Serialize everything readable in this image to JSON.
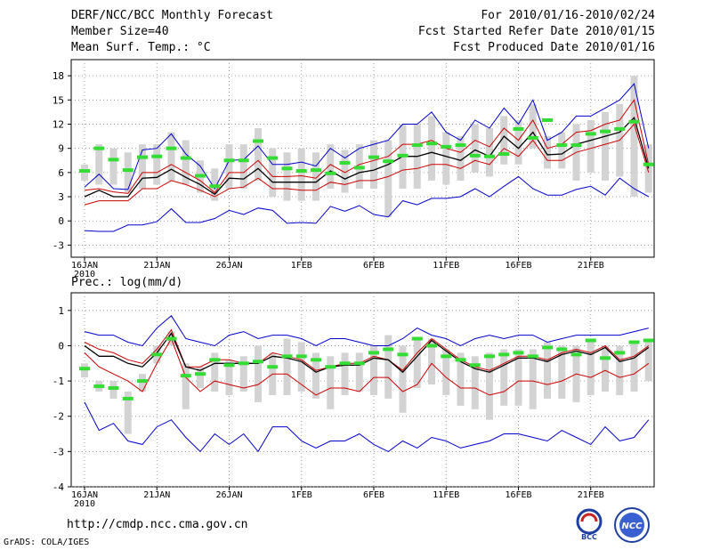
{
  "header": {
    "title": "DERF/NCC/BCC Monthly Forecast",
    "member": "Member Size=40",
    "variable": "Mean Surf. Temp.: °C",
    "period": "For 2010/01/16-2010/02/24",
    "refer": "Fcst Started Refer Date 2010/01/15",
    "produced": "Fcst Produced Date 2010/01/16"
  },
  "footer": {
    "url": "http://cmdp.ncc.cma.gov.cn",
    "grads": "GrADS: COLA/IGES",
    "logo_bcc": "BCC",
    "logo_ncc": "NCC"
  },
  "colors": {
    "max_min": "#0000cc",
    "spread": "#cc0000",
    "mean": "#000000",
    "obs": "#33dd33",
    "box": "#d3d3d3",
    "grid": "#888888"
  },
  "chart_data": [
    {
      "type": "line",
      "title": "Mean Surf. Temp.: °C",
      "ylim": [
        -4.5,
        20
      ],
      "yticks": [
        -3,
        0,
        3,
        6,
        9,
        12,
        15,
        18
      ],
      "xticks": [
        "16JAN",
        "21JAN",
        "26JAN",
        "1FEB",
        "6FEB",
        "11FEB",
        "16FEB",
        "21FEB"
      ],
      "xtick_sub": "2010",
      "x_days": 40,
      "series": [
        {
          "name": "max",
          "values": [
            4.2,
            5.8,
            4.0,
            3.9,
            8.8,
            9.0,
            10.8,
            8.3,
            6.8,
            4.0,
            7.5,
            7.6,
            9.3,
            7.0,
            7.0,
            7.3,
            6.8,
            9.0,
            7.8,
            9.0,
            9.5,
            10.0,
            12.0,
            12.0,
            13.5,
            11.0,
            10.0,
            12.5,
            11.5,
            14.0,
            12.0,
            15.0,
            10.0,
            11.0,
            13.0,
            13.0,
            14.0,
            15.0,
            17.0,
            9.0
          ]
        },
        {
          "name": "upper",
          "values": [
            3.8,
            4.0,
            3.6,
            3.4,
            6.0,
            6.0,
            7.0,
            6.0,
            5.0,
            3.5,
            6.0,
            6.0,
            7.5,
            5.5,
            5.5,
            5.6,
            5.3,
            7.0,
            6.0,
            7.0,
            7.5,
            8.0,
            9.5,
            9.5,
            10.0,
            9.0,
            8.5,
            10.0,
            9.2,
            11.5,
            10.0,
            12.5,
            9.0,
            9.5,
            11.0,
            11.2,
            12.0,
            12.5,
            15.0,
            7.0
          ]
        },
        {
          "name": "mean",
          "values": [
            3.0,
            3.8,
            3.0,
            3.0,
            5.3,
            5.4,
            6.4,
            5.4,
            4.5,
            3.3,
            5.3,
            5.2,
            6.5,
            4.8,
            4.8,
            4.8,
            4.8,
            6.2,
            5.2,
            6.0,
            6.3,
            7.0,
            8.0,
            8.0,
            8.5,
            8.0,
            7.5,
            8.8,
            8.0,
            10.5,
            9.0,
            11.0,
            8.2,
            8.3,
            9.5,
            10.0,
            10.5,
            11.0,
            12.8,
            6.5
          ]
        },
        {
          "name": "lower",
          "values": [
            2.0,
            2.5,
            2.5,
            2.5,
            4.0,
            4.0,
            5.0,
            4.5,
            3.8,
            3.0,
            4.0,
            4.2,
            5.3,
            4.0,
            4.0,
            3.8,
            3.8,
            4.8,
            4.5,
            5.0,
            5.0,
            5.5,
            6.3,
            6.5,
            7.0,
            7.0,
            6.5,
            7.5,
            7.0,
            9.0,
            8.0,
            10.0,
            7.5,
            7.5,
            8.5,
            9.0,
            9.5,
            10.0,
            12.0,
            6.0
          ]
        },
        {
          "name": "min",
          "values": [
            -1.2,
            -1.3,
            -1.3,
            -0.5,
            -0.5,
            -0.1,
            1.5,
            -0.2,
            -0.2,
            0.3,
            1.3,
            0.8,
            1.6,
            1.3,
            -0.3,
            -0.2,
            -0.3,
            1.8,
            1.2,
            1.9,
            0.8,
            0.5,
            2.5,
            2.0,
            2.8,
            2.8,
            3.0,
            4.0,
            3.0,
            4.3,
            5.5,
            4.0,
            3.2,
            3.2,
            3.9,
            4.3,
            3.2,
            5.3,
            4.0,
            3.0
          ]
        },
        {
          "name": "observed",
          "values": [
            6.2,
            9.0,
            7.6,
            6.3,
            7.9,
            8.0,
            9.0,
            7.8,
            5.6,
            4.3,
            7.5,
            7.5,
            9.9,
            7.8,
            6.5,
            6.2,
            6.3,
            5.9,
            7.2,
            6.6,
            7.9,
            7.4,
            8.1,
            9.4,
            9.6,
            9.2,
            9.4,
            8.1,
            8.0,
            8.3,
            11.4,
            10.3,
            12.5,
            9.4,
            9.4,
            10.8,
            11.1,
            11.4,
            12.3,
            7.0
          ]
        }
      ],
      "boxes_high": [
        7.0,
        9.5,
        9.0,
        8.5,
        9.5,
        9.5,
        11.0,
        10.0,
        7.5,
        6.5,
        9.5,
        9.5,
        11.5,
        9.0,
        8.5,
        9.0,
        8.5,
        9.5,
        8.8,
        9.5,
        10.0,
        10.0,
        12.0,
        12.0,
        13.0,
        11.0,
        10.5,
        12.0,
        11.5,
        13.0,
        12.5,
        14.5,
        10.5,
        11.0,
        12.0,
        12.5,
        13.5,
        14.5,
        18.0,
        9.5
      ],
      "boxes_low": [
        5.0,
        4.5,
        4.5,
        3.5,
        4.0,
        4.5,
        5.0,
        4.5,
        3.5,
        2.5,
        4.0,
        4.0,
        5.0,
        3.0,
        2.5,
        2.5,
        2.5,
        4.0,
        3.5,
        4.0,
        4.0,
        0.5,
        4.0,
        4.0,
        5.0,
        4.5,
        5.0,
        6.0,
        5.5,
        7.0,
        7.0,
        9.0,
        6.5,
        6.5,
        5.0,
        6.0,
        5.0,
        5.5,
        3.0,
        3.5
      ]
    },
    {
      "type": "line",
      "title": "Prec.: log(mm/d)",
      "ylim": [
        -4,
        1.5
      ],
      "yticks": [
        -4,
        -3,
        -2,
        -1,
        0,
        1
      ],
      "xticks": [
        "16JAN",
        "21JAN",
        "26JAN",
        "1FEB",
        "6FEB",
        "11FEB",
        "16FEB",
        "21FEB"
      ],
      "xtick_sub": "2010",
      "x_days": 40,
      "series": [
        {
          "name": "max",
          "values": [
            0.4,
            0.3,
            0.3,
            0.1,
            0.0,
            0.5,
            0.85,
            0.2,
            0.1,
            0.0,
            0.3,
            0.4,
            0.2,
            0.3,
            0.3,
            0.2,
            0.0,
            0.2,
            0.2,
            0.1,
            0.0,
            0.0,
            0.2,
            0.5,
            0.3,
            0.2,
            0.0,
            0.2,
            0.3,
            0.2,
            0.3,
            0.3,
            0.1,
            0.2,
            0.3,
            0.3,
            0.3,
            0.3,
            0.4,
            0.5
          ]
        },
        {
          "name": "upper",
          "values": [
            0.1,
            -0.1,
            -0.2,
            -0.4,
            -0.5,
            -0.1,
            0.45,
            -0.6,
            -0.6,
            -0.4,
            -0.4,
            -0.5,
            -0.5,
            -0.2,
            -0.3,
            -0.4,
            -0.7,
            -0.6,
            -0.5,
            -0.5,
            -0.3,
            -0.4,
            -0.7,
            -0.2,
            0.2,
            -0.1,
            -0.4,
            -0.6,
            -0.7,
            -0.5,
            -0.3,
            -0.3,
            -0.4,
            -0.2,
            -0.1,
            -0.2,
            0.0,
            -0.4,
            -0.3,
            0.0
          ]
        },
        {
          "name": "mean",
          "values": [
            0.0,
            -0.3,
            -0.3,
            -0.5,
            -0.6,
            -0.2,
            0.35,
            -0.6,
            -0.7,
            -0.5,
            -0.5,
            -0.5,
            -0.5,
            -0.3,
            -0.35,
            -0.45,
            -0.75,
            -0.6,
            -0.55,
            -0.55,
            -0.35,
            -0.4,
            -0.75,
            -0.3,
            0.15,
            -0.15,
            -0.45,
            -0.65,
            -0.75,
            -0.55,
            -0.35,
            -0.35,
            -0.45,
            -0.25,
            -0.15,
            -0.25,
            -0.05,
            -0.45,
            -0.35,
            -0.05
          ]
        },
        {
          "name": "lower",
          "values": [
            -0.2,
            -0.6,
            -0.8,
            -1.0,
            -1.3,
            -0.5,
            0.2,
            -0.9,
            -1.3,
            -1.0,
            -1.1,
            -1.2,
            -1.1,
            -0.8,
            -0.8,
            -1.1,
            -1.4,
            -1.2,
            -1.2,
            -1.3,
            -0.9,
            -0.9,
            -1.3,
            -1.1,
            -0.5,
            -0.9,
            -1.2,
            -1.2,
            -1.4,
            -1.3,
            -1.0,
            -1.0,
            -1.1,
            -1.0,
            -0.8,
            -0.9,
            -0.7,
            -0.9,
            -0.8,
            -0.5
          ]
        },
        {
          "name": "min",
          "values": [
            -1.6,
            -2.4,
            -2.2,
            -2.7,
            -2.8,
            -2.3,
            -2.1,
            -2.6,
            -3.0,
            -2.5,
            -2.8,
            -2.5,
            -3.0,
            -2.3,
            -2.3,
            -2.7,
            -2.9,
            -2.7,
            -2.7,
            -2.5,
            -2.8,
            -3.0,
            -2.7,
            -2.9,
            -2.6,
            -2.7,
            -2.9,
            -2.8,
            -2.7,
            -2.5,
            -2.5,
            -2.6,
            -2.7,
            -2.4,
            -2.6,
            -2.8,
            -2.3,
            -2.7,
            -2.6,
            -2.1
          ]
        },
        {
          "name": "observed",
          "values": [
            -0.65,
            -1.15,
            -1.2,
            -1.5,
            -1.0,
            -0.25,
            0.2,
            -0.85,
            -0.8,
            -0.4,
            -0.55,
            -0.5,
            -0.45,
            -0.6,
            -0.3,
            -0.3,
            -0.4,
            -0.6,
            -0.5,
            -0.5,
            -0.2,
            -0.1,
            -0.25,
            0.2,
            0.0,
            -0.3,
            -0.4,
            -0.55,
            -0.3,
            -0.25,
            -0.2,
            -0.3,
            -0.05,
            -0.1,
            -0.25,
            0.15,
            -0.35,
            -0.2,
            0.1,
            0.15
          ]
        }
      ],
      "boxes_high": [
        -0.5,
        -1.0,
        -1.0,
        -1.3,
        -0.8,
        0.0,
        0.4,
        -0.5,
        -0.6,
        -0.2,
        -0.4,
        -0.3,
        0.0,
        -0.2,
        0.2,
        0.1,
        -0.2,
        -0.3,
        -0.2,
        -0.2,
        0.0,
        0.3,
        0.0,
        0.2,
        0.2,
        -0.1,
        -0.2,
        -0.3,
        -0.2,
        -0.1,
        -0.1,
        -0.1,
        0.1,
        0.0,
        0.0,
        0.1,
        0.0,
        0.0,
        0.1,
        0.1
      ],
      "boxes_low": [
        -0.9,
        -1.3,
        -1.5,
        -2.5,
        -1.3,
        -0.5,
        0.0,
        -1.8,
        -1.2,
        -1.3,
        -1.4,
        -1.3,
        -1.6,
        -1.4,
        -1.4,
        -1.3,
        -1.5,
        -1.8,
        -1.4,
        -1.3,
        -1.4,
        -1.5,
        -1.9,
        -1.2,
        -1.1,
        -1.4,
        -1.7,
        -1.8,
        -2.1,
        -1.7,
        -1.7,
        -1.8,
        -1.5,
        -1.5,
        -1.6,
        -1.4,
        -1.3,
        -1.4,
        -1.3,
        -1.0
      ]
    }
  ]
}
